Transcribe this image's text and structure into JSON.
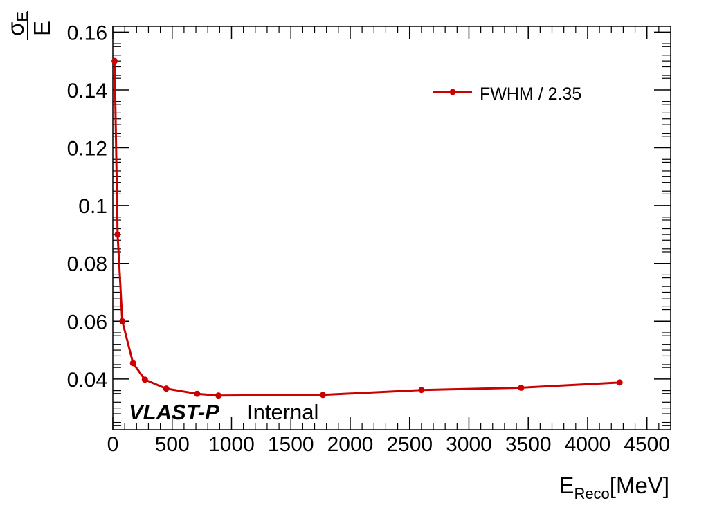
{
  "chart_data": {
    "type": "line",
    "x_unit": "MeV",
    "xlim": [
      0,
      4700
    ],
    "ylim": [
      0.0225,
      0.162
    ],
    "x_ticks": [
      0,
      500,
      1000,
      1500,
      2000,
      2500,
      3000,
      3500,
      4000,
      4500
    ],
    "x_tick_labels": [
      "0",
      "500",
      "1000",
      "1500",
      "2000",
      "2500",
      "3000",
      "3500",
      "4000",
      "4500"
    ],
    "y_ticks": [
      0.04,
      0.06,
      0.08,
      0.1,
      0.12,
      0.14,
      0.16
    ],
    "y_tick_labels": [
      "0.04",
      "0.06",
      "0.08",
      "0.1",
      "0.12",
      "0.14",
      "0.16"
    ],
    "xlabel": {
      "main": "E",
      "sub": "Reco",
      "suffix": "[MeV]"
    },
    "ylabel": {
      "numerator": "σ",
      "numerator_sub": "E",
      "denominator": "E"
    },
    "legend_position": "top-right",
    "grid": false,
    "series": [
      {
        "name": "FWHM / 2.35",
        "color": "#cc0000",
        "marker": "circle",
        "x": [
          15,
          40,
          80,
          170,
          270,
          450,
          710,
          890,
          1770,
          2600,
          3440,
          4270
        ],
        "y": [
          0.15,
          0.09,
          0.06,
          0.0455,
          0.0398,
          0.0367,
          0.0349,
          0.0343,
          0.0345,
          0.0362,
          0.037,
          0.0388
        ]
      }
    ],
    "annotations": {
      "brand": "VLAST-P",
      "status": "Internal"
    }
  }
}
